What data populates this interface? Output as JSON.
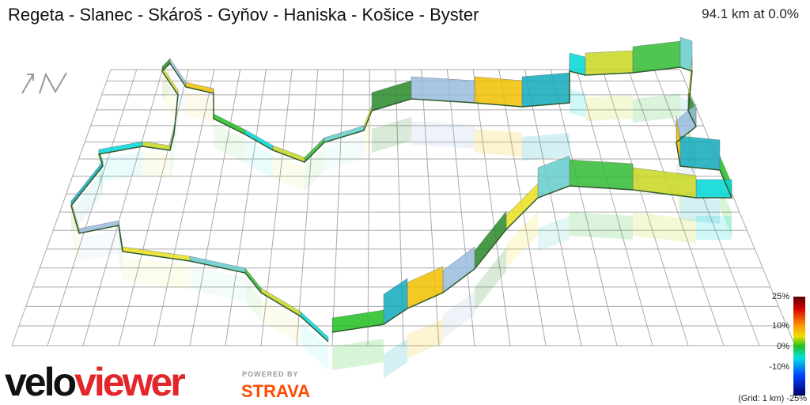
{
  "header": {
    "title": "Regeta - Slanec - Skároš - Gyňov - Haniska - Košice - Byster",
    "stats": "94.1 km at 0.0%"
  },
  "legend": {
    "labels": [
      "25%",
      "10%",
      "0%",
      "-10%",
      "(Grid: 1 km) -25%"
    ]
  },
  "logo": {
    "velo": "velo",
    "viewer": "viewer",
    "powered_by": "POWERED BY",
    "strava": "STRAVA"
  }
}
